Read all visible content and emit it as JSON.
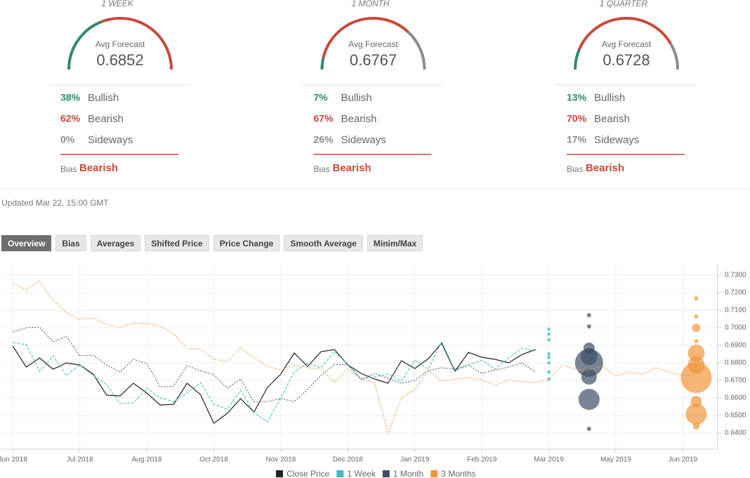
{
  "forecasts": [
    {
      "period": "1 WEEK",
      "avg_label": "Avg Forecast",
      "avg": 0.6852,
      "rows": [
        {
          "name": "Bullish",
          "value": 38,
          "label": "38%"
        },
        {
          "name": "Bearish",
          "value": 62,
          "label": "62%"
        },
        {
          "name": "Sideways",
          "value": 0,
          "label": "0%"
        }
      ],
      "bias_label": "Bias",
      "bias": "Bearish"
    },
    {
      "period": "1 MONTH",
      "avg_label": "Avg Forecast",
      "avg": 0.6767,
      "rows": [
        {
          "name": "Bullish",
          "value": 7,
          "label": "7%"
        },
        {
          "name": "Bearish",
          "value": 67,
          "label": "67%"
        },
        {
          "name": "Sideways",
          "value": 26,
          "label": "26%"
        }
      ],
      "bias_label": "Bias",
      "bias": "Bearish"
    },
    {
      "period": "1 QUARTER",
      "avg_label": "Avg Forecast",
      "avg": 0.6728,
      "rows": [
        {
          "name": "Bullish",
          "value": 13,
          "label": "13%"
        },
        {
          "name": "Bearish",
          "value": 70,
          "label": "70%"
        },
        {
          "name": "Sideways",
          "value": 17,
          "label": "17%"
        }
      ],
      "bias_label": "Bias",
      "bias": "Bearish"
    }
  ],
  "row_colors": [
    "#2f8a6c",
    "#c9493a",
    "#8c8c8e"
  ],
  "updated": "Updated Mar 22, 15:00 GMT",
  "tabs": [
    "Overview",
    "Bias",
    "Averages",
    "Shifted Price",
    "Price Change",
    "Smooth Average",
    "Minim/Max"
  ],
  "active_tab": 0,
  "chart_data": {
    "type": "line",
    "x": [
      0,
      1,
      2,
      3,
      4,
      5,
      6,
      7,
      8,
      9,
      10,
      11,
      12,
      13,
      14,
      15,
      16,
      17,
      18,
      19,
      20,
      21,
      22,
      23,
      24,
      25,
      26,
      27,
      28,
      29,
      30,
      31,
      32,
      33,
      34,
      35,
      36,
      37,
      38,
      39,
      40,
      41,
      42,
      43,
      44,
      45,
      46,
      47,
      48,
      49,
      50,
      51
    ],
    "xlim": [
      -0.85,
      52.6
    ],
    "xticks": [
      {
        "value": 0,
        "label": "Jun 2018"
      },
      {
        "value": 5,
        "label": "Jul 2018"
      },
      {
        "value": 10,
        "label": "Aug 2018"
      },
      {
        "value": 15,
        "label": "Oct 2018"
      },
      {
        "value": 20,
        "label": "Nov 2018"
      },
      {
        "value": 25,
        "label": "Dec 2018"
      },
      {
        "value": 30,
        "label": "Jan 2019"
      },
      {
        "value": 35,
        "label": "Feb 2019"
      },
      {
        "value": 40,
        "label": "Mar 2019"
      },
      {
        "value": 45,
        "label": "May 2019"
      },
      {
        "value": 50,
        "label": "Jun 2019"
      }
    ],
    "ylim": [
      0.6308,
      0.736
    ],
    "yticks": [
      {
        "value": 0.64,
        "label": "0.6400"
      },
      {
        "value": 0.65,
        "label": "0.6500"
      },
      {
        "value": 0.66,
        "label": "0.6600"
      },
      {
        "value": 0.67,
        "label": "0.6700"
      },
      {
        "value": 0.68,
        "label": "0.6800"
      },
      {
        "value": 0.69,
        "label": "0.6900"
      },
      {
        "value": 0.7,
        "label": "0.7000"
      },
      {
        "value": 0.71,
        "label": "0.7100"
      },
      {
        "value": 0.72,
        "label": "0.7200"
      },
      {
        "value": 0.73,
        "label": "0.7300"
      }
    ],
    "grid": true,
    "legend": "bottom",
    "series": [
      {
        "name": "Close Price",
        "color": "#222222",
        "dash": "solid",
        "values": [
          0.6896,
          0.6776,
          0.6828,
          0.6764,
          0.68,
          0.6788,
          0.6736,
          0.6616,
          0.6612,
          0.6684,
          0.6628,
          0.656,
          0.6564,
          0.6684,
          0.662,
          0.6456,
          0.6512,
          0.6596,
          0.652,
          0.666,
          0.6736,
          0.6856,
          0.678,
          0.6864,
          0.6876,
          0.6788,
          0.674,
          0.6708,
          0.6684,
          0.6812,
          0.6768,
          0.6824,
          0.6912,
          0.6752,
          0.686,
          0.6832,
          0.682,
          0.68,
          0.6848,
          0.6876,
          null,
          null,
          null,
          null,
          null,
          null,
          null,
          null,
          null,
          null,
          null,
          null
        ]
      },
      {
        "name": "1 Week",
        "color": "#3fbcc0",
        "dash": "dashed",
        "values": [
          0.6916,
          0.6904,
          0.6752,
          0.684,
          0.6728,
          0.6788,
          0.6728,
          0.6676,
          0.6568,
          0.6572,
          0.6656,
          0.66,
          0.658,
          0.6628,
          0.6688,
          0.6564,
          0.6536,
          0.6644,
          0.6516,
          0.6464,
          0.66,
          0.6748,
          0.68,
          0.6772,
          0.6864,
          0.6792,
          0.6708,
          0.672,
          0.6736,
          0.6696,
          0.6816,
          0.6764,
          0.692,
          0.6756,
          0.6788,
          0.6816,
          0.6764,
          0.6828,
          0.6884,
          0.6868,
          null,
          null,
          null,
          null,
          null,
          null,
          null,
          null,
          null,
          null,
          null,
          null
        ],
        "forecast": {
          "x": [
            40,
            40,
            40,
            40,
            40,
            40,
            40,
            40
          ],
          "values": [
            0.6992,
            0.6964,
            0.6932,
            0.6852,
            0.6832,
            0.68,
            0.6748,
            0.6708
          ],
          "sizes": [
            2.5,
            2.5,
            2.5,
            2.5,
            2.5,
            2.5,
            2.5,
            2.5
          ]
        }
      },
      {
        "name": "1 Month",
        "color": "#3d5068",
        "dash": "dotted",
        "values": [
          0.6976,
          0.7,
          0.7004,
          0.692,
          0.6952,
          0.684,
          0.6844,
          0.6788,
          0.6748,
          0.682,
          0.6796,
          0.6664,
          0.6668,
          0.6784,
          0.6756,
          0.6732,
          0.6656,
          0.6708,
          0.6576,
          0.658,
          0.6596,
          0.658,
          0.6648,
          0.6728,
          0.6792,
          0.6788,
          0.6704,
          0.674,
          0.6712,
          0.6684,
          0.67,
          0.6756,
          0.6772,
          0.6764,
          0.6788,
          0.674,
          0.676,
          0.6776,
          0.68,
          0.6748,
          null,
          null,
          null,
          null,
          null,
          null,
          null,
          null,
          null,
          null,
          null,
          null
        ],
        "forecast": {
          "x": [
            43,
            43,
            43,
            43,
            43,
            43,
            43,
            43
          ],
          "values": [
            0.7072,
            0.7008,
            0.6884,
            0.6836,
            0.68,
            0.672,
            0.6592,
            0.6424
          ],
          "sizes": [
            3,
            3,
            8,
            12,
            20,
            11,
            15,
            3
          ]
        }
      },
      {
        "name": "3 Months",
        "color": "#f0953a",
        "dash": "dotted",
        "values": [
          0.7256,
          0.7216,
          0.7268,
          0.7156,
          0.7088,
          0.7048,
          0.7056,
          0.702,
          0.7,
          0.7028,
          0.7024,
          0.7008,
          0.6968,
          0.688,
          0.688,
          0.682,
          0.6808,
          0.6888,
          0.6828,
          0.678,
          0.676,
          0.6788,
          0.6772,
          0.6768,
          0.6688,
          0.6764,
          0.6708,
          0.6688,
          0.6396,
          0.66,
          0.6648,
          0.676,
          0.6696,
          0.6708,
          0.6716,
          0.6704,
          0.6672,
          0.6704,
          0.6692,
          0.6688,
          0.6704,
          0.6788,
          0.6764,
          0.6756,
          0.678,
          0.6724,
          0.6748,
          0.6736,
          0.6772,
          0.6748,
          0.6728,
          0.6732
        ],
        "forecast": {
          "x": [
            51,
            51,
            51,
            51,
            51,
            51,
            51,
            51,
            51,
            51
          ],
          "values": [
            0.7168,
            0.7064,
            0.7,
            0.6924,
            0.6856,
            0.6788,
            0.6716,
            0.658,
            0.6508,
            0.644
          ],
          "sizes": [
            3,
            3,
            6,
            3,
            12,
            12,
            22,
            8,
            15,
            5
          ]
        }
      }
    ]
  }
}
